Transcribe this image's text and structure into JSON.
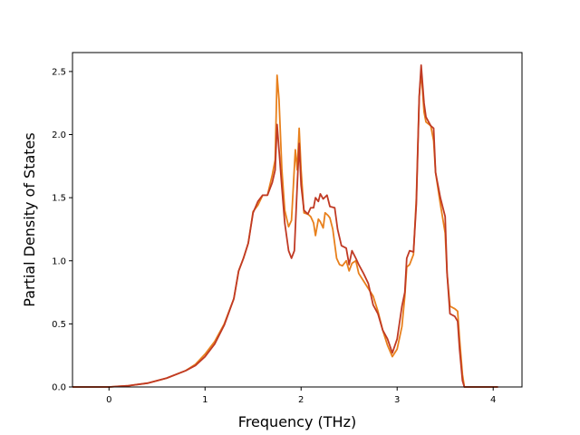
{
  "chart_data": {
    "type": "line",
    "title": "",
    "xlabel": "Frequency (THz)",
    "ylabel": "Partial Density of States",
    "xlim": [
      -0.38,
      4.3
    ],
    "ylim": [
      0.0,
      2.65
    ],
    "xticks": [
      0,
      1,
      2,
      3,
      4
    ],
    "yticks": [
      0.0,
      0.5,
      1.0,
      1.5,
      2.0,
      2.5
    ],
    "xtick_labels": [
      "0",
      "1",
      "2",
      "3",
      "4"
    ],
    "ytick_labels": [
      "0.0",
      "0.5",
      "1.0",
      "1.5",
      "2.0",
      "2.5"
    ],
    "grid": false,
    "legend": "none",
    "series": [
      {
        "color": "#e8801c",
        "points": [
          [
            -0.38,
            0.0
          ],
          [
            0.0,
            0.0
          ],
          [
            0.2,
            0.01
          ],
          [
            0.4,
            0.03
          ],
          [
            0.6,
            0.07
          ],
          [
            0.8,
            0.13
          ],
          [
            0.9,
            0.18
          ],
          [
            1.0,
            0.26
          ],
          [
            1.1,
            0.36
          ],
          [
            1.2,
            0.5
          ],
          [
            1.3,
            0.7
          ],
          [
            1.35,
            0.92
          ],
          [
            1.4,
            1.02
          ],
          [
            1.45,
            1.14
          ],
          [
            1.5,
            1.39
          ],
          [
            1.55,
            1.44
          ],
          [
            1.6,
            1.52
          ],
          [
            1.65,
            1.52
          ],
          [
            1.7,
            1.68
          ],
          [
            1.73,
            1.8
          ],
          [
            1.75,
            2.47
          ],
          [
            1.77,
            2.28
          ],
          [
            1.8,
            1.72
          ],
          [
            1.83,
            1.4
          ],
          [
            1.87,
            1.27
          ],
          [
            1.9,
            1.32
          ],
          [
            1.94,
            1.88
          ],
          [
            1.96,
            1.72
          ],
          [
            1.98,
            2.05
          ],
          [
            2.0,
            1.72
          ],
          [
            2.03,
            1.38
          ],
          [
            2.07,
            1.37
          ],
          [
            2.1,
            1.35
          ],
          [
            2.13,
            1.3
          ],
          [
            2.15,
            1.2
          ],
          [
            2.18,
            1.33
          ],
          [
            2.2,
            1.31
          ],
          [
            2.23,
            1.26
          ],
          [
            2.25,
            1.38
          ],
          [
            2.28,
            1.36
          ],
          [
            2.3,
            1.34
          ],
          [
            2.33,
            1.25
          ],
          [
            2.37,
            1.02
          ],
          [
            2.4,
            0.97
          ],
          [
            2.43,
            0.96
          ],
          [
            2.47,
            1.0
          ],
          [
            2.5,
            0.92
          ],
          [
            2.53,
            0.98
          ],
          [
            2.57,
            1.0
          ],
          [
            2.6,
            0.9
          ],
          [
            2.65,
            0.84
          ],
          [
            2.7,
            0.78
          ],
          [
            2.75,
            0.72
          ],
          [
            2.8,
            0.6
          ],
          [
            2.85,
            0.45
          ],
          [
            2.9,
            0.33
          ],
          [
            2.95,
            0.24
          ],
          [
            3.0,
            0.3
          ],
          [
            3.05,
            0.48
          ],
          [
            3.08,
            0.72
          ],
          [
            3.1,
            0.95
          ],
          [
            3.13,
            0.97
          ],
          [
            3.17,
            1.05
          ],
          [
            3.2,
            1.5
          ],
          [
            3.23,
            2.3
          ],
          [
            3.25,
            2.5
          ],
          [
            3.28,
            2.18
          ],
          [
            3.3,
            2.1
          ],
          [
            3.35,
            2.07
          ],
          [
            3.38,
            1.95
          ],
          [
            3.4,
            1.7
          ],
          [
            3.45,
            1.45
          ],
          [
            3.5,
            1.22
          ],
          [
            3.52,
            0.9
          ],
          [
            3.55,
            0.64
          ],
          [
            3.6,
            0.62
          ],
          [
            3.63,
            0.6
          ],
          [
            3.65,
            0.38
          ],
          [
            3.68,
            0.1
          ],
          [
            3.7,
            0.0
          ],
          [
            4.05,
            0.0
          ]
        ]
      },
      {
        "color": "#c03a24",
        "points": [
          [
            -0.38,
            0.0
          ],
          [
            0.0,
            0.0
          ],
          [
            0.2,
            0.01
          ],
          [
            0.4,
            0.03
          ],
          [
            0.6,
            0.07
          ],
          [
            0.8,
            0.13
          ],
          [
            0.9,
            0.17
          ],
          [
            1.0,
            0.24
          ],
          [
            1.1,
            0.34
          ],
          [
            1.2,
            0.49
          ],
          [
            1.3,
            0.7
          ],
          [
            1.35,
            0.92
          ],
          [
            1.4,
            1.02
          ],
          [
            1.45,
            1.14
          ],
          [
            1.5,
            1.38
          ],
          [
            1.55,
            1.47
          ],
          [
            1.6,
            1.52
          ],
          [
            1.65,
            1.52
          ],
          [
            1.7,
            1.62
          ],
          [
            1.73,
            1.72
          ],
          [
            1.75,
            2.08
          ],
          [
            1.77,
            1.88
          ],
          [
            1.8,
            1.58
          ],
          [
            1.83,
            1.3
          ],
          [
            1.87,
            1.08
          ],
          [
            1.9,
            1.02
          ],
          [
            1.93,
            1.08
          ],
          [
            1.96,
            1.6
          ],
          [
            1.98,
            1.93
          ],
          [
            2.0,
            1.6
          ],
          [
            2.03,
            1.4
          ],
          [
            2.07,
            1.37
          ],
          [
            2.1,
            1.42
          ],
          [
            2.13,
            1.42
          ],
          [
            2.15,
            1.5
          ],
          [
            2.18,
            1.47
          ],
          [
            2.2,
            1.53
          ],
          [
            2.23,
            1.49
          ],
          [
            2.27,
            1.52
          ],
          [
            2.3,
            1.43
          ],
          [
            2.35,
            1.42
          ],
          [
            2.38,
            1.25
          ],
          [
            2.42,
            1.12
          ],
          [
            2.47,
            1.1
          ],
          [
            2.5,
            0.97
          ],
          [
            2.53,
            1.08
          ],
          [
            2.57,
            1.02
          ],
          [
            2.6,
            0.97
          ],
          [
            2.65,
            0.9
          ],
          [
            2.7,
            0.82
          ],
          [
            2.75,
            0.65
          ],
          [
            2.8,
            0.58
          ],
          [
            2.85,
            0.45
          ],
          [
            2.9,
            0.38
          ],
          [
            2.95,
            0.27
          ],
          [
            3.0,
            0.38
          ],
          [
            3.05,
            0.64
          ],
          [
            3.08,
            0.75
          ],
          [
            3.1,
            1.02
          ],
          [
            3.13,
            1.08
          ],
          [
            3.17,
            1.07
          ],
          [
            3.2,
            1.45
          ],
          [
            3.23,
            2.3
          ],
          [
            3.25,
            2.55
          ],
          [
            3.28,
            2.25
          ],
          [
            3.3,
            2.14
          ],
          [
            3.35,
            2.07
          ],
          [
            3.38,
            2.05
          ],
          [
            3.4,
            1.7
          ],
          [
            3.45,
            1.5
          ],
          [
            3.5,
            1.35
          ],
          [
            3.52,
            0.9
          ],
          [
            3.55,
            0.58
          ],
          [
            3.6,
            0.56
          ],
          [
            3.63,
            0.52
          ],
          [
            3.65,
            0.3
          ],
          [
            3.68,
            0.05
          ],
          [
            3.7,
            0.0
          ],
          [
            4.05,
            0.0
          ]
        ]
      }
    ]
  }
}
